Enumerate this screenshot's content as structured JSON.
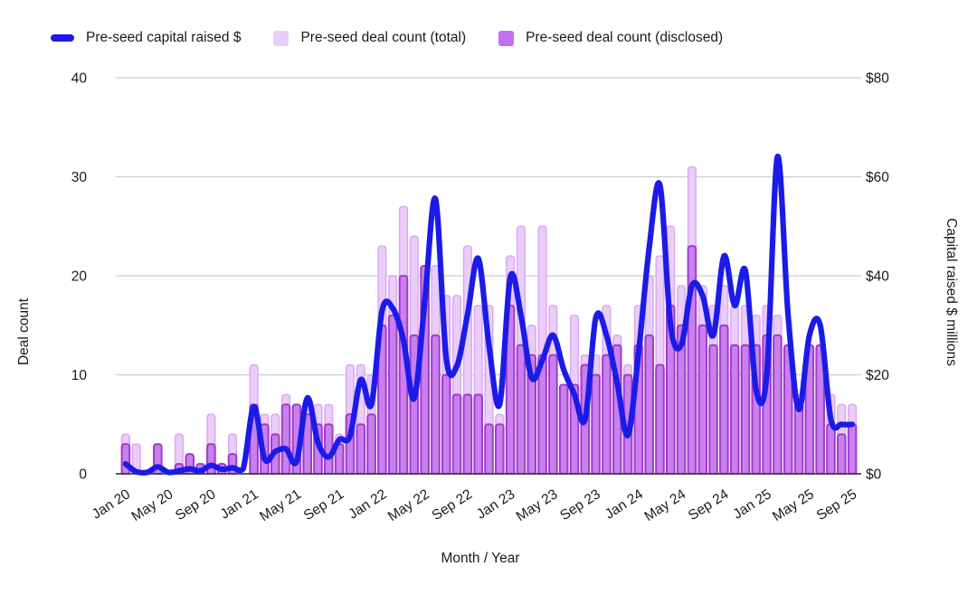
{
  "legend": {
    "items": [
      {
        "label": "Pre-seed capital raised $",
        "type": "line",
        "color": "#1b1be8"
      },
      {
        "label": "Pre-seed deal count (total)",
        "type": "square",
        "color": "#EACDF8"
      },
      {
        "label": "Pre-seed deal count (disclosed)",
        "type": "square",
        "color": "#C36FF1"
      }
    ]
  },
  "chart_data": {
    "type": "combo: two overlaid bar series (left axis) + smooth line (right axis)",
    "categories": [
      "Jan 20",
      "Feb 20",
      "Mar 20",
      "Apr 20",
      "May 20",
      "Jun 20",
      "Jul 20",
      "Aug 20",
      "Sep 20",
      "Oct 20",
      "Nov 20",
      "Dec 20",
      "Jan 21",
      "Feb 21",
      "Mar 21",
      "Apr 21",
      "May 21",
      "Jun 21",
      "Jul 21",
      "Aug 21",
      "Sep 21",
      "Oct 21",
      "Nov 21",
      "Dec 21",
      "Jan 22",
      "Feb 22",
      "Mar 22",
      "Apr 22",
      "May 22",
      "Jun 22",
      "Jul 22",
      "Aug 22",
      "Sep 22",
      "Oct 22",
      "Nov 22",
      "Dec 22",
      "Jan 23",
      "Feb 23",
      "Mar 23",
      "Apr 23",
      "May 23",
      "Jun 23",
      "Jul 23",
      "Aug 23",
      "Sep 23",
      "Oct 23",
      "Nov 23",
      "Dec 23",
      "Jan 24",
      "Feb 24",
      "Mar 24",
      "Apr 24",
      "May 24",
      "Jun 24",
      "Jul 24",
      "Aug 24",
      "Sep 24",
      "Oct 24",
      "Nov 24",
      "Dec 24",
      "Jan 25",
      "Feb 25",
      "Mar 25",
      "Apr 25",
      "May 25",
      "Jun 25",
      "Jul 25",
      "Aug 25",
      "Sep 25"
    ],
    "series": [
      {
        "name": "Pre-seed deal count (total)",
        "type": "bar",
        "axis": "left",
        "fill": "#EACDF8",
        "border": "#DBA9F2",
        "values": [
          4,
          3,
          0,
          3,
          0,
          4,
          2,
          1,
          6,
          1,
          4,
          0,
          11,
          6,
          6,
          8,
          7,
          7,
          7,
          7,
          4,
          11,
          11,
          10,
          23,
          20,
          27,
          24,
          21,
          21,
          18,
          18,
          23,
          17,
          17,
          6,
          22,
          25,
          15,
          25,
          17,
          9,
          16,
          12,
          12,
          17,
          14,
          11,
          17,
          20,
          22,
          25,
          19,
          31,
          19,
          17,
          19,
          17,
          17,
          16,
          17,
          16,
          13,
          8,
          13,
          13,
          8,
          7,
          7
        ]
      },
      {
        "name": "Pre-seed deal count (disclosed)",
        "type": "bar",
        "axis": "left",
        "fill": "#C980EF",
        "border": "#A03CC8",
        "values": [
          3,
          0,
          0,
          3,
          0,
          1,
          2,
          1,
          3,
          1,
          2,
          0,
          7,
          5,
          4,
          7,
          7,
          6,
          5,
          5,
          3,
          6,
          5,
          6,
          15,
          16,
          20,
          14,
          21,
          14,
          10,
          8,
          8,
          8,
          5,
          5,
          17,
          13,
          12,
          12,
          12,
          9,
          9,
          11,
          10,
          12,
          13,
          10,
          13,
          14,
          11,
          17,
          15,
          23,
          15,
          13,
          15,
          13,
          13,
          13,
          14,
          14,
          13,
          7,
          13,
          13,
          5,
          4,
          5
        ]
      },
      {
        "name": "Pre-seed capital raised $",
        "type": "line",
        "axis": "right",
        "color": "#1b1be8",
        "values_millions": [
          2,
          0.4,
          0.2,
          1.4,
          0.3,
          0.6,
          1,
          0.6,
          1.7,
          0.9,
          1.2,
          1,
          13.5,
          3,
          4.5,
          5,
          2.5,
          15.3,
          6.3,
          3.4,
          6.9,
          7.6,
          19,
          14,
          33,
          33.4,
          27,
          15.2,
          35,
          55.5,
          23.3,
          21.8,
          32.3,
          43.5,
          26,
          14,
          39.7,
          32,
          19.4,
          23,
          28,
          21,
          16,
          11,
          31.5,
          28,
          18.4,
          7.8,
          24.5,
          45.8,
          58.3,
          30,
          26,
          38,
          36,
          28,
          44,
          34,
          41,
          17,
          20,
          64,
          32,
          13,
          28,
          30,
          11,
          10,
          10
        ]
      }
    ],
    "xlabel": "Month / Year",
    "ylabel_left": "Deal count",
    "ylabel_right": "Capital raised $ millions",
    "ylim_left": [
      0,
      40
    ],
    "ylim_right": [
      0,
      80
    ],
    "y_ticks_left": [
      "0",
      "10",
      "20",
      "30",
      "40"
    ],
    "y_ticks_right": [
      "$0",
      "$20",
      "$40",
      "$60",
      "$80"
    ],
    "x_tick_every": 4,
    "grid": true,
    "legend_position": "top",
    "colors": {
      "gridline": "#cccccc",
      "baseline": "#424242",
      "tick_text": "#1a1a1a"
    }
  }
}
